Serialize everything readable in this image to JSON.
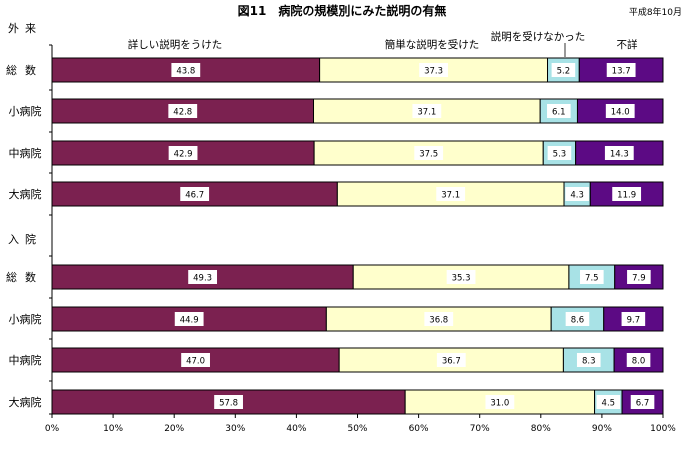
{
  "chart_data": {
    "type": "bar",
    "orientation": "horizontal",
    "stacked": true,
    "percent": true,
    "title": "図11　病院の規模別にみた説明の有無",
    "date_note": "平成8年10月",
    "series": [
      {
        "name": "詳しい説明をうけた",
        "color": "#7B2150"
      },
      {
        "name": "簡単な説明を受けた",
        "color": "#FFFFCC"
      },
      {
        "name": "説明を受けなかった",
        "color": "#A8E2E6"
      },
      {
        "name": "不詳",
        "color": "#5C0A84"
      }
    ],
    "groups": [
      {
        "label": "外来",
        "rows": [
          {
            "label": "総数",
            "values": [
              43.8,
              37.3,
              5.2,
              13.7
            ]
          },
          {
            "label": "小病院",
            "values": [
              42.8,
              37.1,
              6.1,
              14.0
            ]
          },
          {
            "label": "中病院",
            "values": [
              42.9,
              37.5,
              5.3,
              14.3
            ]
          },
          {
            "label": "大病院",
            "values": [
              46.7,
              37.1,
              4.3,
              11.9
            ]
          }
        ]
      },
      {
        "label": "入院",
        "rows": [
          {
            "label": "総数",
            "values": [
              49.3,
              35.3,
              7.5,
              7.9
            ]
          },
          {
            "label": "小病院",
            "values": [
              44.9,
              36.8,
              8.6,
              9.7
            ]
          },
          {
            "label": "中病院",
            "values": [
              47.0,
              36.7,
              8.3,
              8.0
            ]
          },
          {
            "label": "大病院",
            "values": [
              57.8,
              31.0,
              4.5,
              6.7
            ]
          }
        ]
      }
    ],
    "xlim": [
      0,
      100
    ],
    "xticks": [
      "0%",
      "10%",
      "20%",
      "30%",
      "40%",
      "50%",
      "60%",
      "70%",
      "80%",
      "90%",
      "100%"
    ],
    "grid": false,
    "legend": "labels above top bars"
  }
}
